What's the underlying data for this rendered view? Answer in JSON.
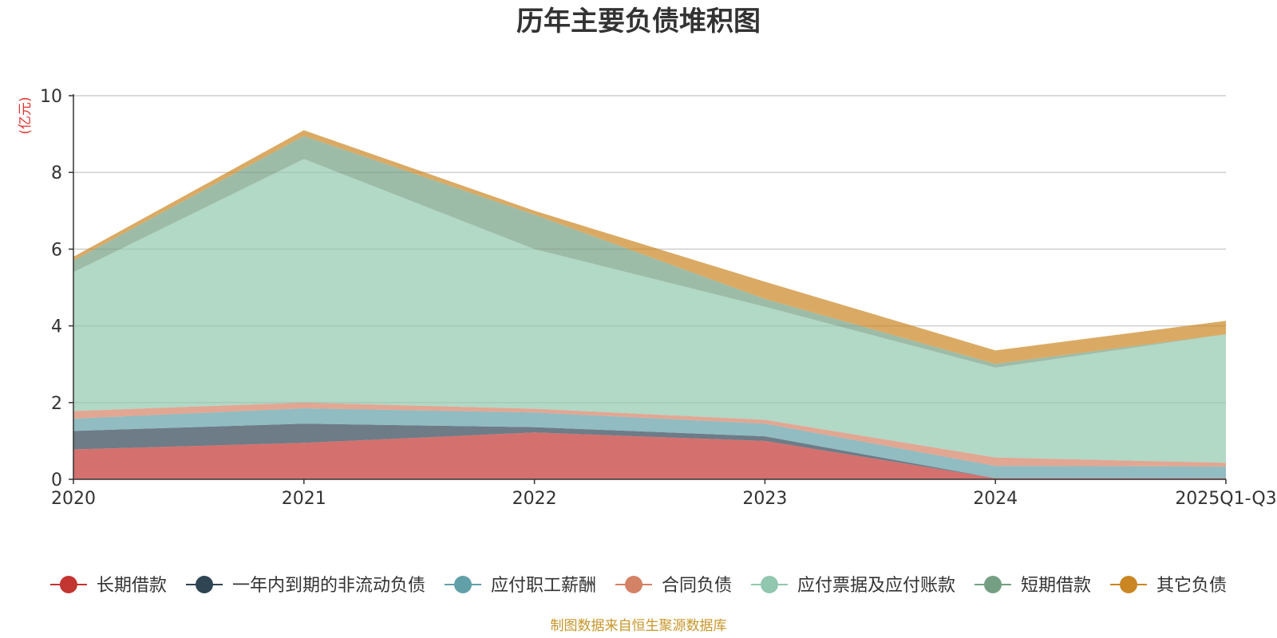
{
  "chart_data": {
    "type": "area",
    "stacked": true,
    "title": "历年主要负债堆积图",
    "ylabel": "(亿元)",
    "ylim": [
      0,
      10
    ],
    "yticks": [
      0,
      2,
      4,
      6,
      8,
      10
    ],
    "grid": true,
    "legend_position": "bottom",
    "categories": [
      "2020",
      "2021",
      "2022",
      "2023",
      "2024",
      "2025Q1-Q3"
    ],
    "series": [
      {
        "name": "长期借款",
        "color": "#c23531",
        "values": [
          0.78,
          0.95,
          1.22,
          1.0,
          0.03,
          0.03
        ]
      },
      {
        "name": "一年内到期的非流动负债",
        "color": "#2f4554",
        "values": [
          0.48,
          0.5,
          0.14,
          0.12,
          0.0,
          0.0
        ]
      },
      {
        "name": "应付职工薪酬",
        "color": "#61a0a8",
        "values": [
          0.32,
          0.4,
          0.38,
          0.33,
          0.32,
          0.3
        ]
      },
      {
        "name": "合同负债",
        "color": "#d48265",
        "values": [
          0.2,
          0.15,
          0.1,
          0.1,
          0.22,
          0.1
        ]
      },
      {
        "name": "应付票据及应付账款",
        "color": "#91c7ae",
        "values": [
          3.62,
          6.35,
          4.16,
          2.95,
          2.34,
          3.35
        ]
      },
      {
        "name": "短期借款",
        "color": "#749f83",
        "values": [
          0.3,
          0.6,
          0.9,
          0.2,
          0.1,
          0.0
        ]
      },
      {
        "name": "其它负债",
        "color": "#ca8622",
        "values": [
          0.1,
          0.15,
          0.1,
          0.45,
          0.35,
          0.35
        ]
      }
    ]
  },
  "footer": {
    "source": "制图数据来自恒生聚源数据库"
  }
}
